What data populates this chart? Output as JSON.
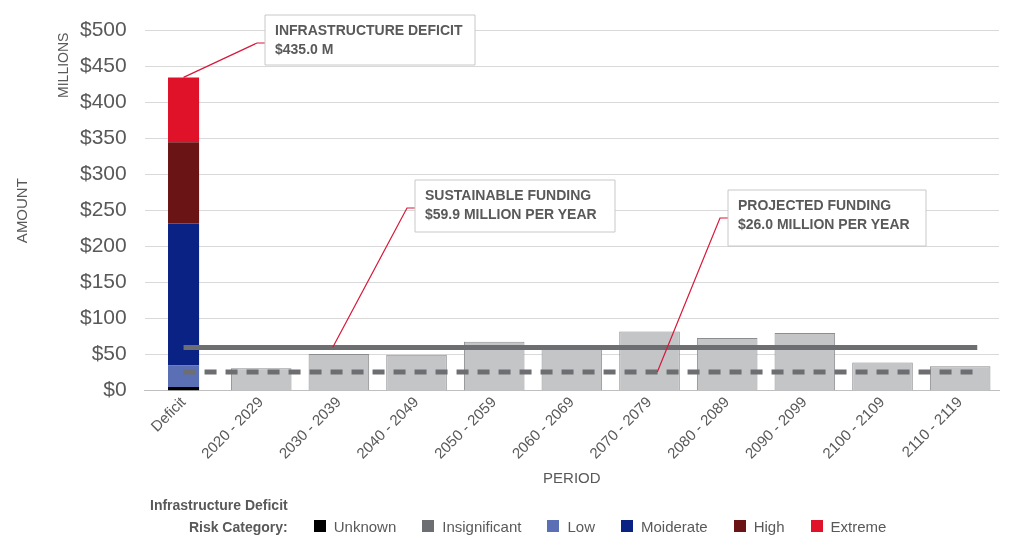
{
  "chart_data": {
    "type": "bar",
    "stacked": true,
    "xlabel": "PERIOD",
    "ylabel": "AMOUNT",
    "legend_title": "Infrastructure Deficit\nRisk Category:",
    "legend": "bottom",
    "grid": "y",
    "categories": [
      "Deficit",
      "2020 - 2029",
      "2030 - 2039",
      "2040 - 2049",
      "2050 - 2059",
      "2060 - 2069",
      "2070 - 2079",
      "2080 - 2089",
      "2090 - 2099",
      "2100 - 2109",
      "2110 - 2119"
    ],
    "series": [
      {
        "name": "Unknown",
        "color": "#000000",
        "values": [
          5,
          null,
          null,
          null,
          null,
          null,
          null,
          null,
          null,
          null,
          null
        ]
      },
      {
        "name": "Insignificant",
        "color": "#6d6e71",
        "values": [
          0,
          null,
          null,
          null,
          null,
          null,
          null,
          null,
          null,
          null,
          null
        ]
      },
      {
        "name": "Low",
        "color": "#5a6fb4",
        "values": [
          30,
          null,
          null,
          null,
          null,
          null,
          null,
          null,
          null,
          null,
          null
        ]
      },
      {
        "name": "Moiderate",
        "color": "#0a2283",
        "values": [
          197,
          null,
          null,
          null,
          null,
          null,
          null,
          null,
          null,
          null,
          null
        ]
      },
      {
        "name": "High",
        "color": "#6b1416",
        "values": [
          113,
          null,
          null,
          null,
          null,
          null,
          null,
          null,
          null,
          null,
          null
        ]
      },
      {
        "name": "Extreme",
        "color": "#e0122a",
        "values": [
          90,
          null,
          null,
          null,
          null,
          null,
          null,
          null,
          null,
          null,
          null
        ]
      },
      {
        "color": "#c4c5c7",
        "values": [
          null,
          31,
          51,
          50,
          68,
          59,
          82,
          73,
          80,
          39,
          34
        ]
      }
    ],
    "ylim": [
      0,
      500
    ],
    "yticks": [
      {
        "value": 0,
        "label": "$0"
      },
      {
        "value": 50,
        "label": "$50"
      },
      {
        "value": 100,
        "label": "$100"
      },
      {
        "value": 150,
        "label": "$150"
      },
      {
        "value": 200,
        "label": "$200"
      },
      {
        "value": 250,
        "label": "$250"
      },
      {
        "value": 300,
        "label": "$300"
      },
      {
        "value": 350,
        "label": "$350"
      },
      {
        "value": 400,
        "label": "$400"
      },
      {
        "value": 450,
        "label": "$450"
      },
      {
        "value": 500,
        "label": "$500"
      }
    ],
    "ref_lines": [
      {
        "axis": "y",
        "value": 59.9,
        "label": "SUSTAINABLE FUNDING\n$59.9 MILLION PER YEAR",
        "color": "#6d6e71",
        "line_style": "solid"
      },
      {
        "axis": "y",
        "value": 26.0,
        "label": "PROJECTED FUNDING\n$26.0 MILLION PER YEAR",
        "color": "#6d6e71",
        "line_style": "dashed"
      }
    ],
    "annotations": [
      {
        "text": "INFRASTRUCTURE DEFICIT\n$435.0 M",
        "x": "Deficit",
        "y": 435
      },
      "MILLIONS"
    ]
  }
}
